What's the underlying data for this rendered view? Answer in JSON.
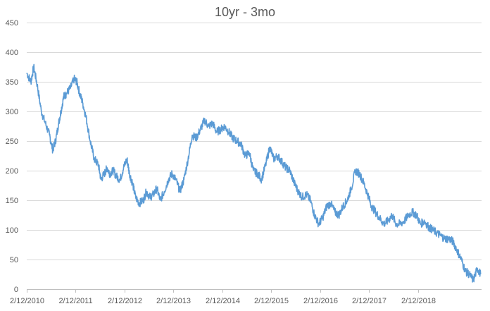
{
  "chart_data": {
    "type": "line",
    "title": "10yr - 3mo",
    "xlabel": "",
    "ylabel": "",
    "ylim": [
      0,
      450
    ],
    "yticks": [
      0,
      50,
      100,
      150,
      200,
      250,
      300,
      350,
      400,
      450
    ],
    "xlim": [
      "2010-02-12",
      "2019-06-01"
    ],
    "xtick_labels": [
      "2/12/2010",
      "2/12/2011",
      "2/12/2012",
      "2/12/2013",
      "2/12/2014",
      "2/12/2015",
      "2/12/2016",
      "2/12/2017",
      "2/12/2018"
    ],
    "xtick_dates": [
      "2010-02-12",
      "2011-02-12",
      "2012-02-12",
      "2013-02-12",
      "2014-02-12",
      "2015-02-12",
      "2016-02-12",
      "2017-02-12",
      "2018-02-12"
    ],
    "grid": true,
    "legend": "none",
    "series_color": "#5b9bd5",
    "series": [
      {
        "x": [
          "2010-02-12",
          "2010-03-15",
          "2010-04-05",
          "2010-05-01",
          "2010-06-01",
          "2010-07-01",
          "2010-08-01",
          "2010-08-25",
          "2010-09-15",
          "2010-10-08",
          "2010-10-25",
          "2010-11-15",
          "2010-12-05",
          "2011-01-05",
          "2011-02-01",
          "2011-02-20",
          "2011-03-15",
          "2011-04-05",
          "2011-05-01",
          "2011-06-01",
          "2011-07-01",
          "2011-08-01",
          "2011-08-20",
          "2011-09-15",
          "2011-10-05",
          "2011-10-25",
          "2011-11-20",
          "2011-12-15",
          "2012-01-10",
          "2012-02-05",
          "2012-03-01",
          "2012-03-20",
          "2012-04-10",
          "2012-05-05",
          "2012-06-01",
          "2012-07-01",
          "2012-07-25",
          "2012-08-20",
          "2012-09-15",
          "2012-10-10",
          "2012-11-05",
          "2012-12-05",
          "2013-01-05",
          "2013-02-01",
          "2013-03-01",
          "2013-04-01",
          "2013-05-01",
          "2013-06-01",
          "2013-07-01",
          "2013-08-01",
          "2013-09-01",
          "2013-10-01",
          "2013-11-01",
          "2013-12-01",
          "2013-12-31",
          "2014-02-01",
          "2014-03-01",
          "2014-04-01",
          "2014-05-01",
          "2014-06-01",
          "2014-07-01",
          "2014-08-01",
          "2014-09-01",
          "2014-10-01",
          "2014-11-01",
          "2014-12-01",
          "2015-01-01",
          "2015-02-01",
          "2015-03-01",
          "2015-04-01",
          "2015-05-01",
          "2015-06-01",
          "2015-07-01",
          "2015-08-01",
          "2015-09-01",
          "2015-10-01",
          "2015-11-01",
          "2015-12-01",
          "2016-01-01",
          "2016-02-01",
          "2016-03-01",
          "2016-04-01",
          "2016-05-01",
          "2016-06-01",
          "2016-07-01",
          "2016-08-01",
          "2016-09-01",
          "2016-10-01",
          "2016-11-01",
          "2016-12-01",
          "2017-01-01",
          "2017-02-01",
          "2017-03-01",
          "2017-04-01",
          "2017-05-01",
          "2017-06-01",
          "2017-07-01",
          "2017-08-01",
          "2017-09-01",
          "2017-10-01",
          "2017-11-01",
          "2017-12-01",
          "2018-01-01",
          "2018-02-01",
          "2018-03-01",
          "2018-04-01",
          "2018-05-01",
          "2018-06-01",
          "2018-07-01",
          "2018-08-01",
          "2018-09-01",
          "2018-10-01",
          "2018-11-01",
          "2018-12-01",
          "2019-01-01",
          "2019-02-01",
          "2019-03-01",
          "2019-04-01",
          "2019-05-01",
          "2019-05-25"
        ],
        "values": [
          365,
          350,
          375,
          345,
          300,
          280,
          260,
          235,
          250,
          280,
          300,
          325,
          330,
          340,
          355,
          350,
          330,
          315,
          290,
          250,
          220,
          210,
          185,
          195,
          205,
          195,
          200,
          190,
          185,
          205,
          220,
          195,
          180,
          155,
          145,
          150,
          165,
          155,
          160,
          170,
          150,
          165,
          185,
          195,
          185,
          165,
          185,
          220,
          260,
          255,
          270,
          285,
          275,
          280,
          265,
          270,
          275,
          265,
          255,
          250,
          245,
          225,
          230,
          200,
          195,
          185,
          210,
          240,
          220,
          225,
          215,
          205,
          200,
          180,
          165,
          155,
          160,
          150,
          125,
          110,
          120,
          140,
          145,
          130,
          125,
          140,
          150,
          170,
          200,
          195,
          180,
          160,
          140,
          130,
          120,
          110,
          115,
          125,
          110,
          110,
          115,
          125,
          130,
          125,
          110,
          115,
          105,
          100,
          95,
          90,
          85,
          85,
          80,
          65,
          50,
          30,
          25,
          15,
          35,
          25
        ]
      }
    ]
  }
}
